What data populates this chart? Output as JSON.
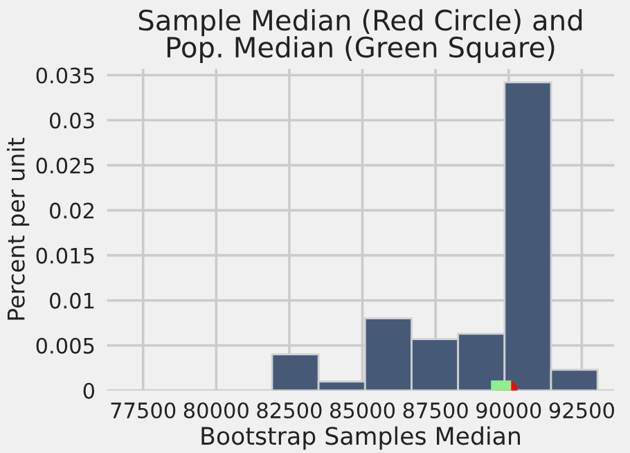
{
  "chart_data": {
    "type": "histogram",
    "title": "Sample Median (Red Circle) and\nPop. Median (Green Square)",
    "xlabel": "Bootstrap Samples Median",
    "ylabel": "Percent per unit",
    "bins": [
      81910,
      83500,
      85090,
      86680,
      88270,
      89860,
      91450,
      93040
    ],
    "values": [
      0.004,
      0.001,
      0.008,
      0.0057,
      0.0063,
      0.0342,
      0.0023
    ],
    "color": "#465a78",
    "series": [
      {
        "type": "scatter",
        "x": [
          89960
        ],
        "values": [
          0
        ],
        "color": "#ff0000",
        "marker": "circle"
      },
      {
        "type": "scatter",
        "x": [
          89740
        ],
        "values": [
          0
        ],
        "color": "#90ee90",
        "marker": "square"
      }
    ],
    "xlim": [
      76270,
      93610
    ],
    "ylim": [
      0,
      0.0357
    ],
    "xticks": [
      77500,
      80000,
      82500,
      85000,
      87500,
      90000,
      92500
    ],
    "yticks": [
      0,
      0.005,
      0.01,
      0.015,
      0.02,
      0.025,
      0.03,
      0.035
    ],
    "grid": true
  }
}
